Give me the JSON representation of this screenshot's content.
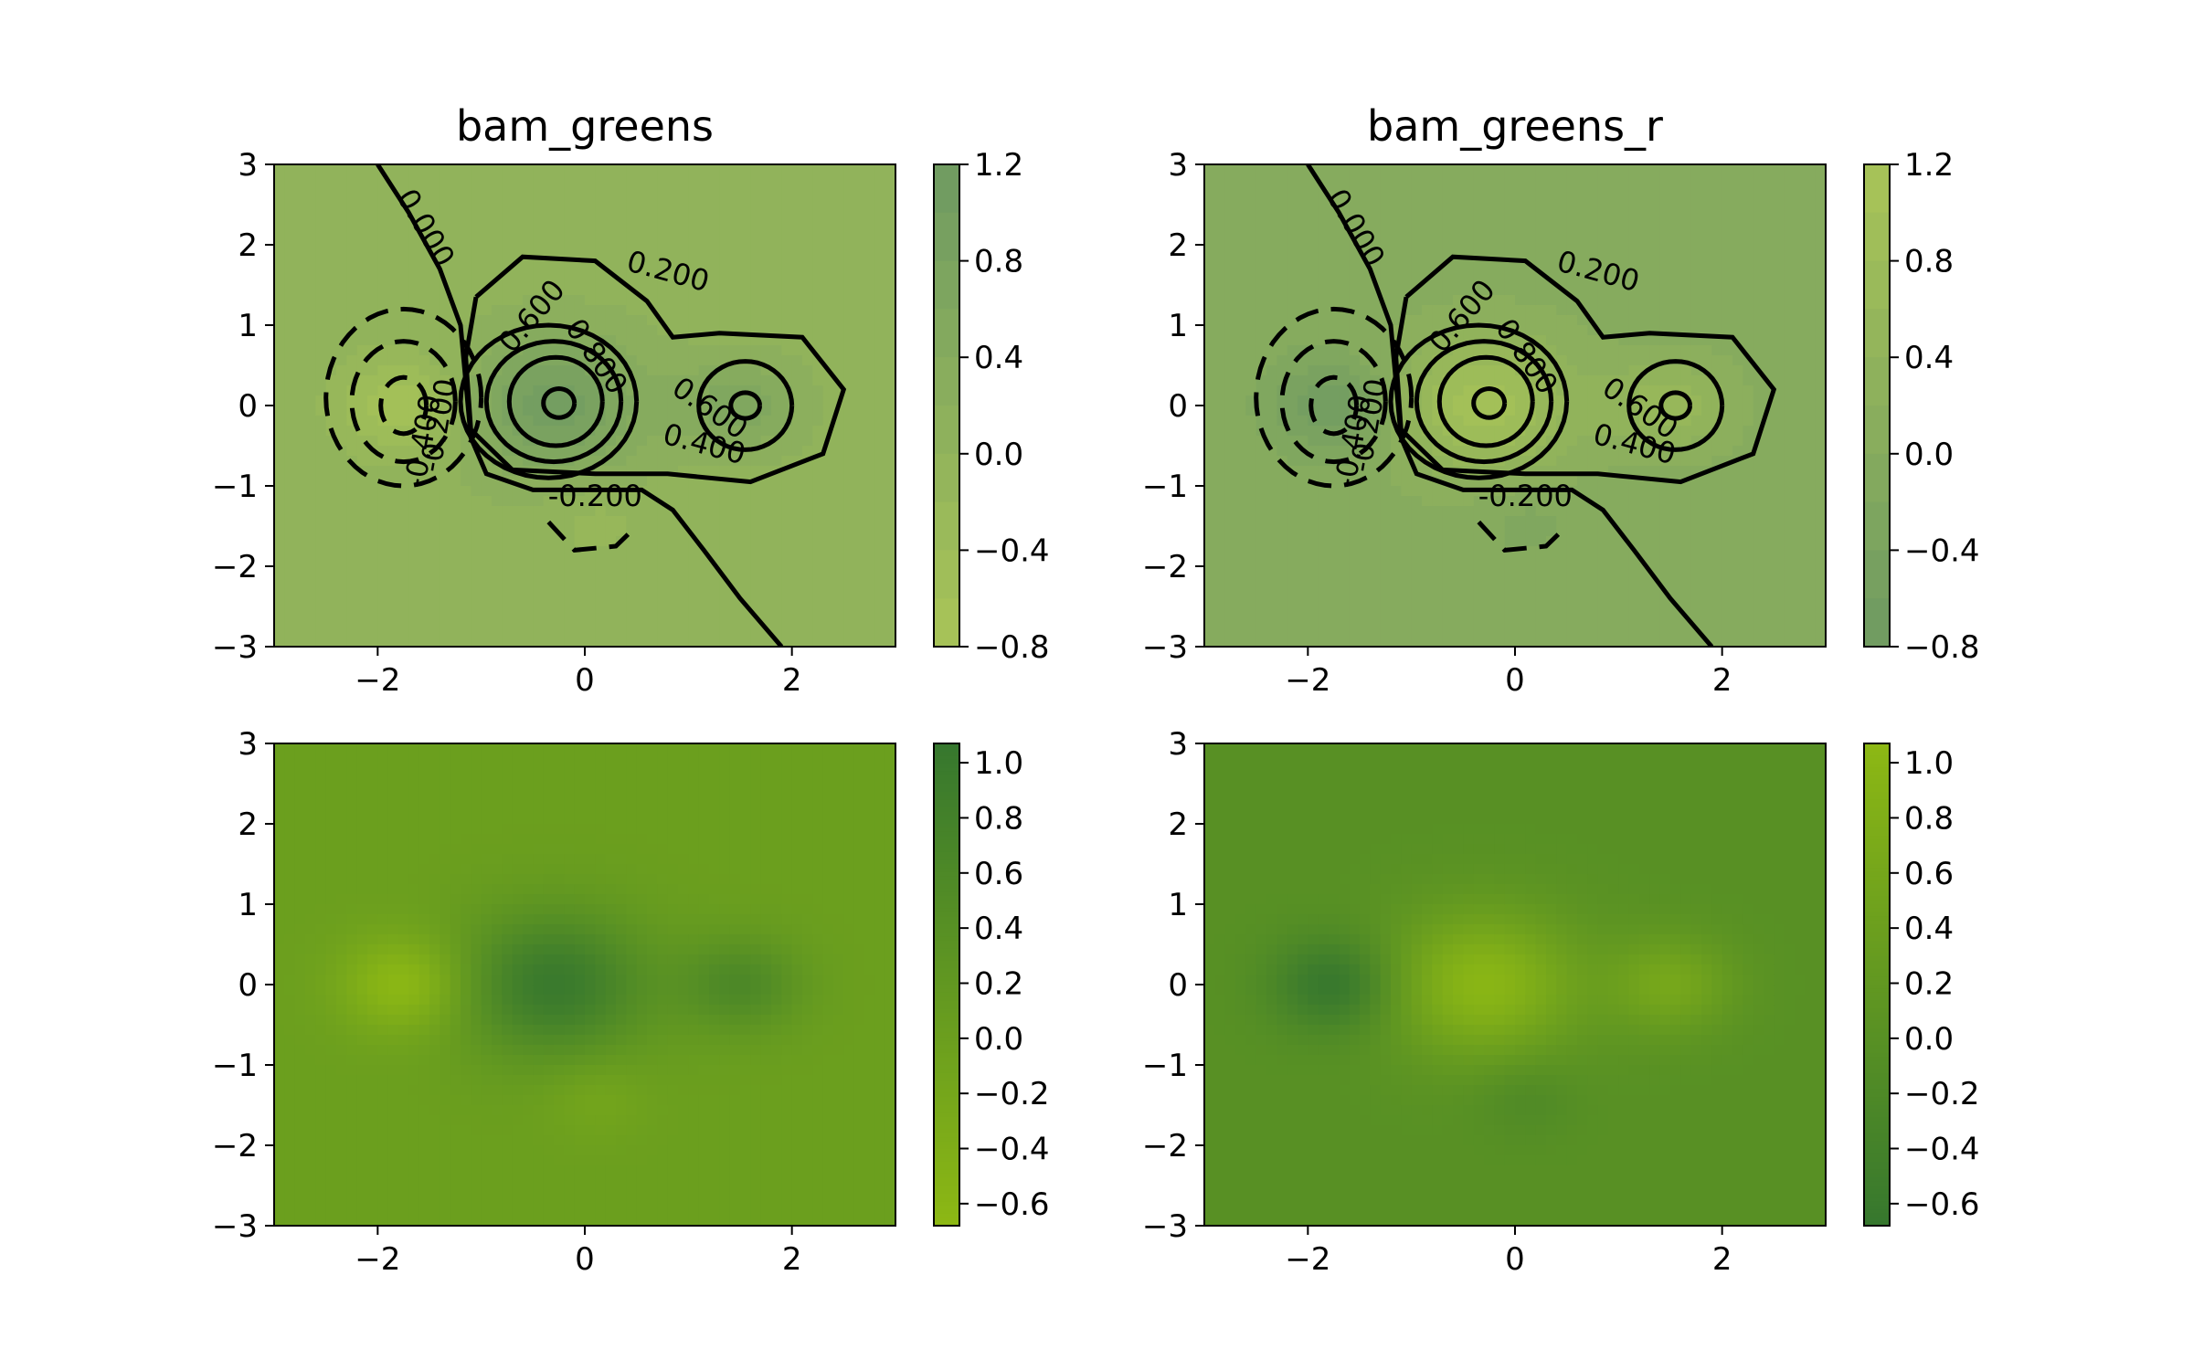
{
  "chart_data": [
    {
      "type": "contour",
      "title": "bam_greens",
      "xlim": [
        -3,
        3
      ],
      "ylim": [
        -3,
        3
      ],
      "xticks": [
        "−2",
        "0",
        "2"
      ],
      "yticks": [
        "3",
        "2",
        "1",
        "0",
        "−1",
        "−2",
        "−3"
      ],
      "colorbar": {
        "range": [
          -0.8,
          1.2
        ],
        "ticks": [
          "1.2",
          "0.8",
          "0.4",
          "0.0",
          "−0.4",
          "−0.8"
        ],
        "low_color": "#a9c457",
        "high_color": "#6e9a62"
      },
      "contour_labels": [
        "0.000",
        "0.200",
        "0.600",
        "0.800",
        "0.600",
        "0.400",
        "-0.200",
        "-0.400",
        "-0.200"
      ]
    },
    {
      "type": "contour",
      "title": "bam_greens_r",
      "xlim": [
        -3,
        3
      ],
      "ylim": [
        -3,
        3
      ],
      "xticks": [
        "−2",
        "0",
        "2"
      ],
      "yticks": [
        "3",
        "2",
        "1",
        "0",
        "−1",
        "−2",
        "−3"
      ],
      "colorbar": {
        "range": [
          -0.8,
          1.2
        ],
        "ticks": [
          "1.2",
          "0.8",
          "0.4",
          "0.0",
          "−0.4",
          "−0.8"
        ],
        "low_color": "#6e9a62",
        "high_color": "#a9c457"
      },
      "contour_labels": [
        "0.000",
        "0.200",
        "0.600",
        "0.800",
        "0.600",
        "0.400",
        "-0.200",
        "-0.400",
        "-0.200"
      ]
    },
    {
      "type": "heatmap",
      "title": "",
      "xlim": [
        -3,
        3
      ],
      "ylim": [
        -3,
        3
      ],
      "xticks": [
        "−2",
        "0",
        "2"
      ],
      "yticks": [
        "3",
        "2",
        "1",
        "0",
        "−1",
        "−2",
        "−3"
      ],
      "colorbar": {
        "range": [
          -0.68,
          1.07
        ],
        "ticks": [
          "1.0",
          "0.8",
          "0.6",
          "0.4",
          "0.2",
          "0.0",
          "−0.2",
          "−0.4",
          "−0.6"
        ],
        "low_color": "#8db814",
        "high_color": "#36772e"
      }
    },
    {
      "type": "heatmap",
      "title": "",
      "xlim": [
        -3,
        3
      ],
      "ylim": [
        -3,
        3
      ],
      "xticks": [
        "−2",
        "0",
        "2"
      ],
      "yticks": [
        "3",
        "2",
        "1",
        "0",
        "−1",
        "−2",
        "−3"
      ],
      "colorbar": {
        "range": [
          -0.68,
          1.07
        ],
        "ticks": [
          "1.0",
          "0.8",
          "0.6",
          "0.4",
          "0.2",
          "0.0",
          "−0.2",
          "−0.4",
          "−0.6"
        ],
        "low_color": "#36772e",
        "high_color": "#8db814"
      }
    }
  ]
}
